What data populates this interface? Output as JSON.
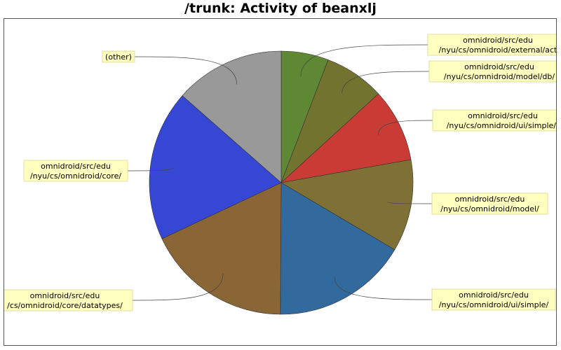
{
  "chart_data": {
    "type": "pie",
    "title": "/trunk: Activity of beanxlj",
    "slices": [
      {
        "label": [
          "omnidroid/src/edu",
          "/nyu/cs/omnidroid/external/act"
        ],
        "value": 5.8,
        "color": "#5e8834"
      },
      {
        "label": [
          "omnidroid/src/edu",
          "/nyu/cs/omnidroid/model/db/"
        ],
        "value": 7.4,
        "color": "#737330"
      },
      {
        "label": [
          "omnidroid/src/edu",
          "/nyu/cs/omnidroid/ui/simple/t"
        ],
        "value": 9.0,
        "color": "#c93b34"
      },
      {
        "label": [
          "omnidroid/src/edu",
          "/nyu/cs/omnidroid/model/"
        ],
        "value": 11.3,
        "color": "#7f7135"
      },
      {
        "label": [
          "omnidroid/src/edu",
          "/nyu/cs/omnidroid/ui/simple/"
        ],
        "value": 16.6,
        "color": "#336a9e"
      },
      {
        "label": [
          "omnidroid/src/edu",
          "/cs/omnidroid/core/datatypes/"
        ],
        "value": 17.9,
        "color": "#8a6535"
      },
      {
        "label": [
          "omnidroid/src/edu",
          "/nyu/cs/omnidroid/core/"
        ],
        "value": 18.5,
        "color": "#3647d4"
      },
      {
        "label": [
          "(other)"
        ],
        "value": 13.5,
        "color": "#999999"
      }
    ]
  }
}
